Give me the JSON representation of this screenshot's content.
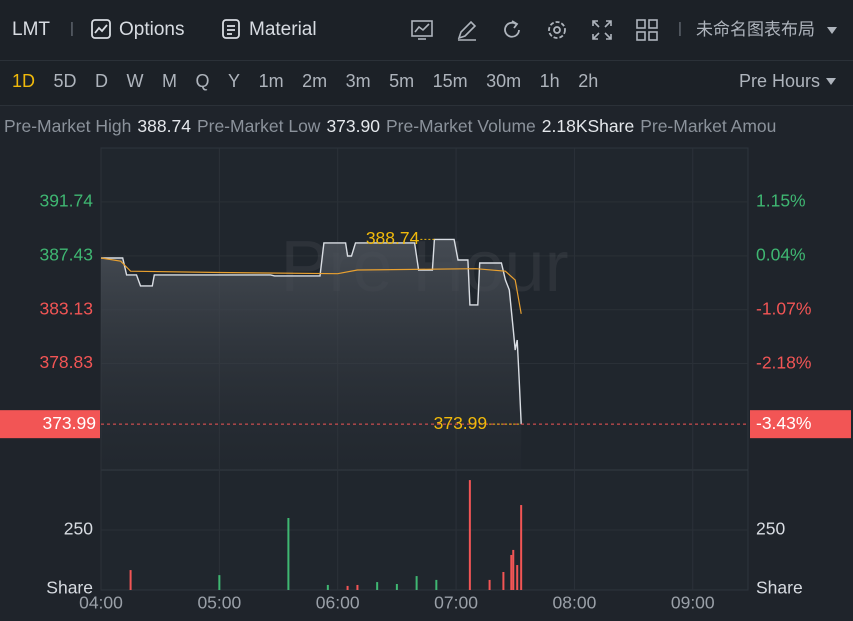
{
  "toolbar": {
    "symbol": "LMT",
    "options": "Options",
    "material": "Material",
    "layout_name": "未命名图表布局"
  },
  "periods": [
    "1D",
    "5D",
    "D",
    "W",
    "M",
    "Q",
    "Y",
    "1m",
    "2m",
    "3m",
    "5m",
    "15m",
    "30m",
    "1h",
    "2h"
  ],
  "session": "Pre Hours",
  "stats": [
    {
      "label": "Pre-Market High",
      "value": "388.74"
    },
    {
      "label": "Pre-Market Low",
      "value": "373.90"
    },
    {
      "label": "Pre-Market Volume",
      "value": "2.18KShare"
    },
    {
      "label": "Pre-Market Amou"
    }
  ],
  "chart_data": [
    {
      "type": "line",
      "watermark": "Pre Hour",
      "series": [
        {
          "color": "#d9dde3",
          "x": [
            "04:00",
            "04:11",
            "04:13",
            "04:18",
            "04:20",
            "04:26",
            "04:27",
            "05:26",
            "05:28",
            "05:51",
            "05:53",
            "06:04",
            "06:05",
            "06:07",
            "06:09",
            "06:39",
            "06:41",
            "06:48",
            "06:49",
            "06:59",
            "07:01",
            "07:06",
            "07:07",
            "07:11",
            "07:12",
            "07:23",
            "07:25",
            "07:27",
            "07:29",
            "07:30",
            "07:31",
            "07:32",
            "07:33"
          ],
          "values": [
            387.26,
            387.26,
            385.91,
            385.91,
            385.03,
            385.03,
            385.91,
            385.91,
            385.83,
            385.83,
            388.46,
            388.46,
            387.42,
            387.42,
            388.46,
            388.46,
            386.3,
            386.3,
            388.74,
            388.74,
            387.1,
            387.1,
            383.51,
            383.51,
            386.86,
            386.86,
            385.51,
            384.71,
            381.51,
            379.91,
            380.71,
            377.52,
            373.99
          ]
        },
        {
          "color": "#e8a030",
          "x": [
            "04:00",
            "04:10",
            "04:15",
            "05:00",
            "06:00",
            "06:10",
            "07:10",
            "07:25",
            "07:30",
            "07:33"
          ],
          "values": [
            387.26,
            387.0,
            386.2,
            386.1,
            386.0,
            386.3,
            386.4,
            386.2,
            385.5,
            382.8
          ]
        }
      ],
      "xlim": [
        "04:00",
        "09:28"
      ],
      "xticks": [
        "04:00",
        "05:00",
        "06:00",
        "07:00",
        "08:00",
        "09:00"
      ],
      "ylim": [
        370.33,
        396.04
      ],
      "yticks": [
        391.74,
        387.43,
        383.13,
        378.83
      ],
      "ytick_colors": [
        "#3fb772",
        "#3fb772",
        "#f25555",
        "#f25555"
      ],
      "y2lim": [
        -4.37,
        2.26
      ],
      "y2ticks": [
        {
          "value": 1.15,
          "label": "1.15%"
        },
        {
          "value": 0.04,
          "label": "0.04%"
        },
        {
          "value": -1.07,
          "label": "-1.07%"
        },
        {
          "value": -2.18,
          "label": "-2.18%"
        }
      ],
      "last_price": {
        "value": 373.99,
        "change": {
          "value": -3.43,
          "label": "-3.43%"
        },
        "color": "#f25555"
      },
      "high_marker": {
        "value": 388.74,
        "x": "06:49"
      },
      "last_marker": {
        "value": 373.99,
        "x": "07:33"
      },
      "grid": true
    },
    {
      "type": "bar",
      "x": [
        "04:15",
        "05:00",
        "05:35",
        "05:55",
        "06:05",
        "06:10",
        "06:20",
        "06:30",
        "06:40",
        "06:50",
        "07:07",
        "07:17",
        "07:24",
        "07:28",
        "07:29",
        "07:31",
        "07:33"
      ],
      "values": [
        83,
        62,
        300,
        21,
        17,
        21,
        33,
        25,
        58,
        42,
        458,
        42,
        75,
        146,
        167,
        104,
        354
      ],
      "colors": [
        "#f25555",
        "#3fb772",
        "#3fb772",
        "#3fb772",
        "#f25555",
        "#f25555",
        "#3fb772",
        "#3fb772",
        "#3fb772",
        "#3fb772",
        "#f25555",
        "#f25555",
        "#f25555",
        "#f25555",
        "#f25555",
        "#f25555",
        "#f25555"
      ],
      "xlim": [
        "04:00",
        "09:28"
      ],
      "ylim": [
        0,
        500
      ],
      "yticks": [
        250
      ],
      "y_label": "Share",
      "y2ticks": [
        250
      ],
      "y2_label": "Share"
    }
  ]
}
